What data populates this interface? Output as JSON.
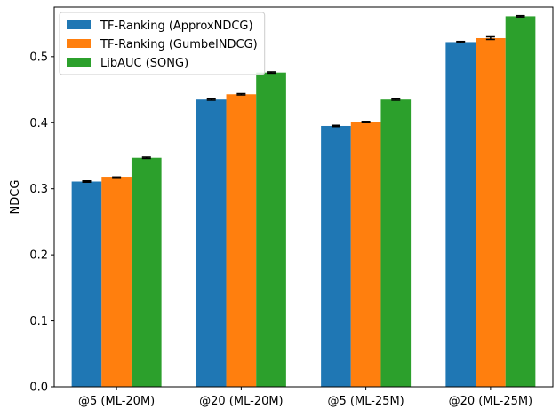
{
  "chart_data": {
    "type": "bar",
    "title": "",
    "xlabel": "",
    "ylabel": "NDCG",
    "ylim": [
      0,
      0.575
    ],
    "yticks": [
      "0.0",
      "0.1",
      "0.2",
      "0.3",
      "0.4",
      "0.5"
    ],
    "grid": false,
    "legend_position": "top-left",
    "categories": [
      "@5 (ML-20M)",
      "@20 (ML-20M)",
      "@5 (ML-25M)",
      "@20 (ML-25M)"
    ],
    "series": [
      {
        "name": "TF-Ranking (ApproxNDCG)",
        "color": "#1f77b4",
        "values": [
          0.311,
          0.435,
          0.395,
          0.522
        ],
        "errors": [
          0.001,
          0.001,
          0.001,
          0.001
        ]
      },
      {
        "name": "TF-Ranking (GumbelNDCG)",
        "color": "#ff7f0e",
        "values": [
          0.317,
          0.443,
          0.401,
          0.528
        ],
        "errors": [
          0.001,
          0.001,
          0.001,
          0.002
        ]
      },
      {
        "name": "LibAUC (SONG)",
        "color": "#2ca02c",
        "values": [
          0.347,
          0.476,
          0.435,
          0.561
        ],
        "errors": [
          0.001,
          0.001,
          0.001,
          0.001
        ]
      }
    ]
  }
}
